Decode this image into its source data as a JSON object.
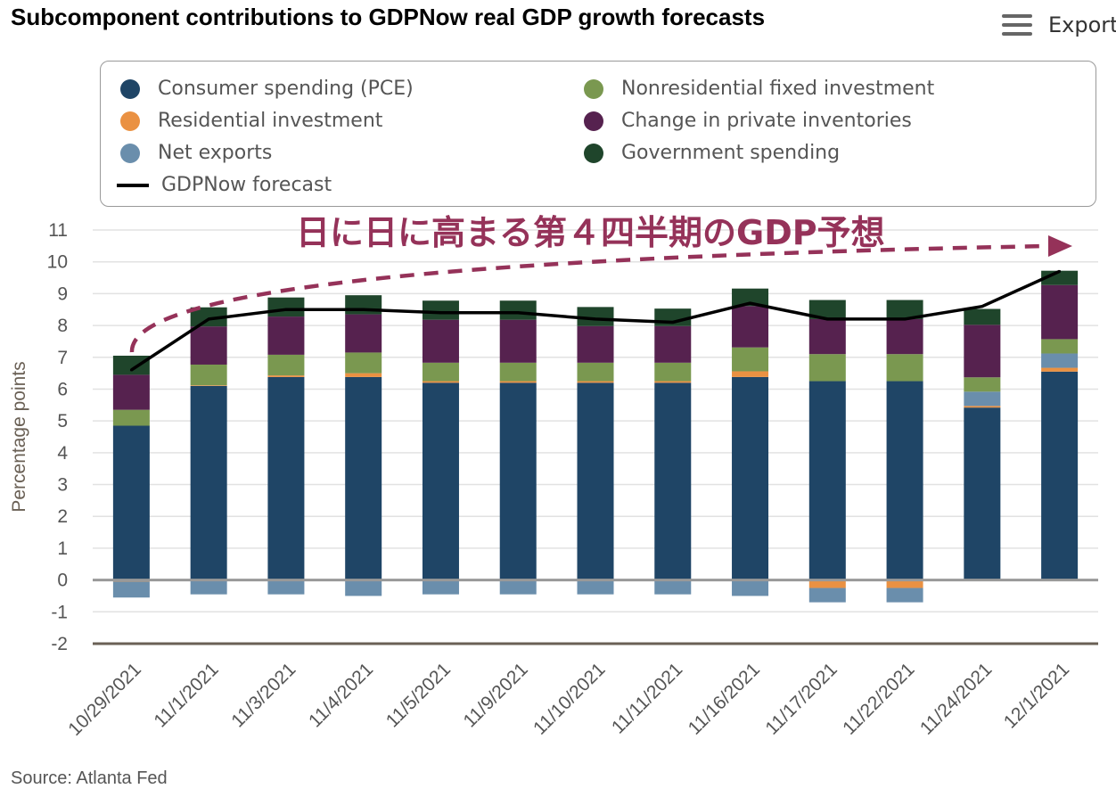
{
  "title": "Subcomponent contributions to GDPNow real GDP growth forecasts",
  "export": {
    "label": "Export",
    "icon": "hamburger-menu-icon"
  },
  "annotation": "日に日に高まる第４四半期のGDP予想",
  "source": "Source: Atlanta Fed",
  "legend": {
    "items": [
      {
        "label": "Consumer spending (PCE)",
        "color": "#1f4566",
        "type": "dot"
      },
      {
        "label": "Residential investment",
        "color": "#ea9142",
        "type": "dot"
      },
      {
        "label": "Net exports",
        "color": "#6a8eac",
        "type": "dot"
      },
      {
        "label": "Nonresidential fixed investment",
        "color": "#7a9850",
        "type": "dot"
      },
      {
        "label": "Change in private inventories",
        "color": "#56224f",
        "type": "dot"
      },
      {
        "label": "Government spending",
        "color": "#1f452b",
        "type": "dot"
      },
      {
        "label": "GDPNow forecast",
        "color": "#000000",
        "type": "line"
      }
    ]
  },
  "chart_data": {
    "type": "bar",
    "stacked": true,
    "title": "Subcomponent contributions to GDPNow real GDP growth forecasts",
    "ylabel": "Percentage points",
    "xlabel": "",
    "ylim": [
      -2,
      11
    ],
    "yticks": [
      11,
      10,
      9,
      8,
      7,
      6,
      5,
      4,
      3,
      2,
      1,
      0,
      -1,
      -2
    ],
    "categories": [
      "10/29/2021",
      "11/1/2021",
      "11/3/2021",
      "11/4/2021",
      "11/5/2021",
      "11/9/2021",
      "11/10/2021",
      "11/11/2021",
      "11/16/2021",
      "11/17/2021",
      "11/22/2021",
      "11/24/2021",
      "12/1/2021"
    ],
    "series": [
      {
        "name": "Consumer spending (PCE)",
        "color": "#1f4566",
        "values": [
          4.85,
          6.1,
          6.38,
          6.38,
          6.2,
          6.2,
          6.2,
          6.2,
          6.38,
          6.25,
          6.25,
          5.42,
          6.55
        ]
      },
      {
        "name": "Residential investment",
        "color": "#ea9142",
        "values": [
          -0.05,
          0.02,
          0.05,
          0.12,
          0.05,
          0.05,
          0.05,
          0.05,
          0.18,
          -0.25,
          -0.25,
          0.05,
          0.12
        ]
      },
      {
        "name": "Net exports",
        "color": "#6a8eac",
        "values": [
          -0.5,
          -0.45,
          -0.45,
          -0.5,
          -0.45,
          -0.45,
          -0.45,
          -0.45,
          -0.5,
          -0.45,
          -0.45,
          0.45,
          0.45
        ]
      },
      {
        "name": "Nonresidential fixed investment",
        "color": "#7a9850",
        "values": [
          0.5,
          0.65,
          0.65,
          0.65,
          0.58,
          0.58,
          0.58,
          0.58,
          0.75,
          0.85,
          0.85,
          0.45,
          0.45
        ]
      },
      {
        "name": "Change in private inventories",
        "color": "#56224f",
        "values": [
          1.1,
          1.2,
          1.2,
          1.2,
          1.35,
          1.35,
          1.15,
          1.15,
          1.3,
          1.1,
          1.1,
          1.65,
          1.7
        ]
      },
      {
        "name": "Government spending",
        "color": "#1f452b",
        "values": [
          0.6,
          0.6,
          0.6,
          0.6,
          0.6,
          0.6,
          0.6,
          0.55,
          0.55,
          0.6,
          0.6,
          0.5,
          0.45
        ]
      }
    ],
    "line": {
      "name": "GDPNow forecast",
      "color": "#000000",
      "values": [
        6.6,
        8.2,
        8.5,
        8.5,
        8.4,
        8.4,
        8.2,
        8.1,
        8.7,
        8.2,
        8.2,
        8.6,
        9.7
      ]
    },
    "grid": true,
    "legend_position": "top"
  }
}
